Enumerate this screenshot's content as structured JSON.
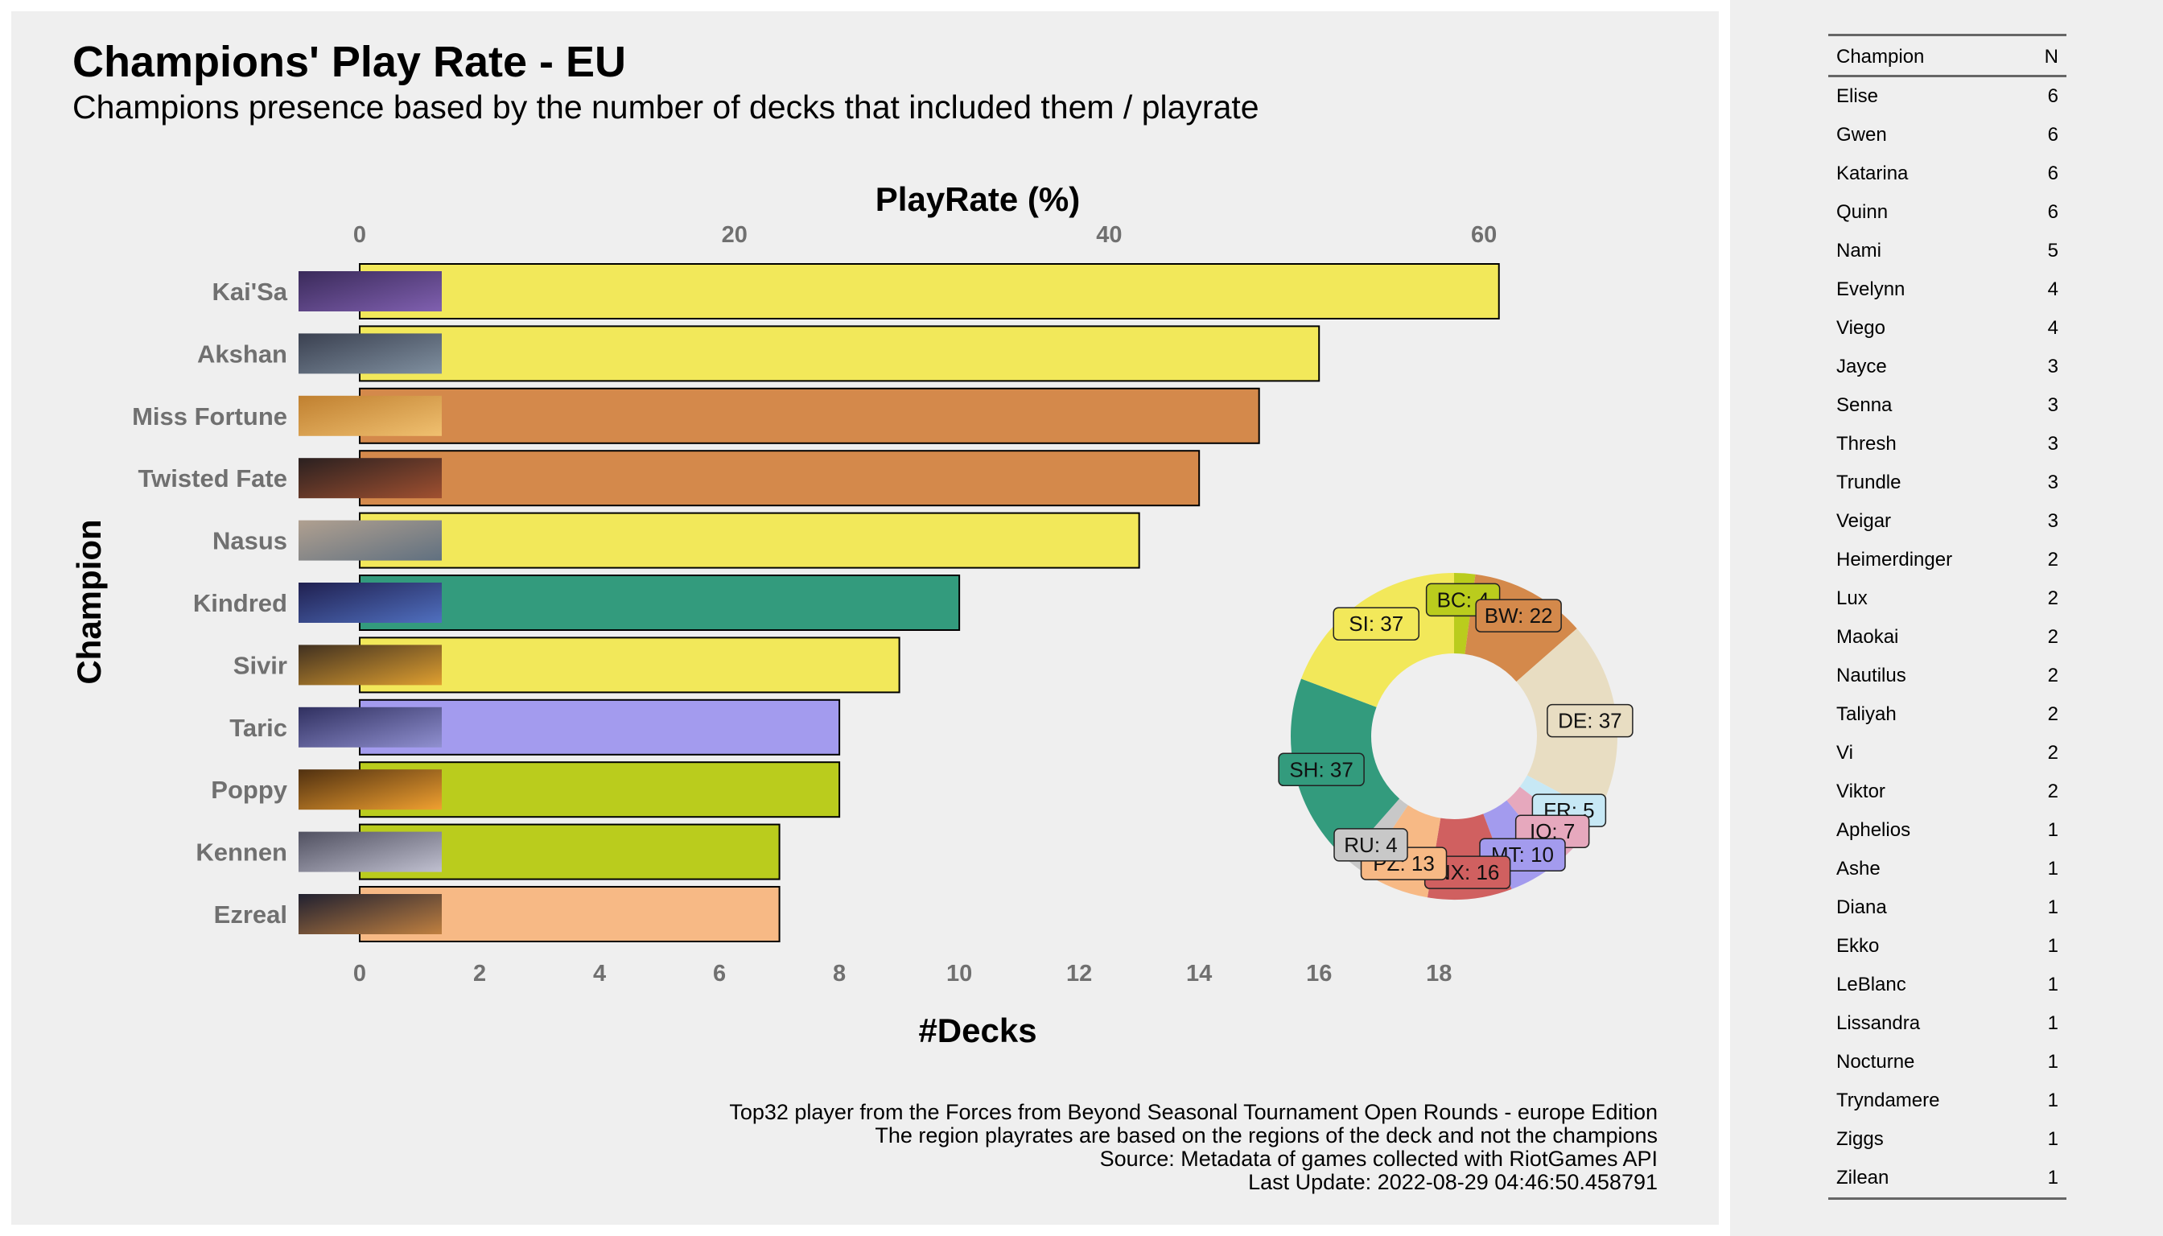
{
  "chart_data": [
    {
      "type": "bar",
      "orientation": "horizontal",
      "title": "Champions' Play Rate - EU",
      "subtitle": "Champions presence based by the number of decks that included them / playrate",
      "xlabel": "#Decks",
      "ylabel": "Champion",
      "x2label": "PlayRate (%)",
      "xlim": [
        0,
        19.5
      ],
      "x2lim": [
        0,
        62.4
      ],
      "xticks": [
        "0",
        "2",
        "4",
        "6",
        "8",
        "10",
        "12",
        "14",
        "16",
        "18"
      ],
      "x2ticks": [
        "0",
        "20",
        "40",
        "60"
      ],
      "categories": [
        "Kai'Sa",
        "Akshan",
        "Miss Fortune",
        "Twisted Fate",
        "Nasus",
        "Kindred",
        "Sivir",
        "Taric",
        "Poppy",
        "Kennen",
        "Ezreal"
      ],
      "values": [
        19,
        16,
        15,
        14,
        13,
        10,
        9,
        8,
        8,
        7,
        7
      ],
      "bar_colors": [
        "#f2e85a",
        "#f2e85a",
        "#d4894b",
        "#d4894b",
        "#f2e85a",
        "#339b7d",
        "#f2e85a",
        "#a39bee",
        "#bacc1d",
        "#bacc1d",
        "#f7b985"
      ],
      "thumbnail_colors": [
        [
          "#3a2a5a",
          "#8060b0"
        ],
        [
          "#3a4050",
          "#8090a0"
        ],
        [
          "#c08030",
          "#f0c070"
        ],
        [
          "#2a2020",
          "#a05030"
        ],
        [
          "#b0a090",
          "#607080"
        ],
        [
          "#202050",
          "#5070c0"
        ],
        [
          "#403020",
          "#e0a030"
        ],
        [
          "#303060",
          "#9090d0"
        ],
        [
          "#503010",
          "#f0a030"
        ],
        [
          "#505060",
          "#c0c0d0"
        ],
        [
          "#202030",
          "#c08040"
        ]
      ],
      "grid": false,
      "legend": "none"
    },
    {
      "type": "pie",
      "donut": true,
      "slices": [
        {
          "label": "BC: 4",
          "value": 4,
          "color": "#bacc1d"
        },
        {
          "label": "BW: 22",
          "value": 22,
          "color": "#d4894b"
        },
        {
          "label": "DE: 37",
          "value": 37,
          "color": "#e8ddc2"
        },
        {
          "label": "FR: 5",
          "value": 5,
          "color": "#c7e8f5"
        },
        {
          "label": "IO: 7",
          "value": 7,
          "color": "#e6a8bd"
        },
        {
          "label": "MT: 10",
          "value": 10,
          "color": "#a39bee"
        },
        {
          "label": "NX: 16",
          "value": 16,
          "color": "#d06060"
        },
        {
          "label": "PZ: 13",
          "value": 13,
          "color": "#f7b985"
        },
        {
          "label": "RU: 4",
          "value": 4,
          "color": "#c8c8c8"
        },
        {
          "label": "SH: 37",
          "value": 37,
          "color": "#339b7d"
        },
        {
          "label": "SI: 37",
          "value": 37,
          "color": "#f2e85a"
        }
      ]
    }
  ],
  "caption": [
    "Top32 player from the Forces from Beyond Seasonal Tournament Open Rounds - europe Edition",
    "The region playrates are based on the regions of the deck and not the champions",
    "Source: Metadata of games collected with RiotGames API",
    "Last Update: 2022-08-29 04:46:50.458791"
  ],
  "table": {
    "headers": [
      "Champion",
      "N"
    ],
    "rows": [
      [
        "Elise",
        "6"
      ],
      [
        "Gwen",
        "6"
      ],
      [
        "Katarina",
        "6"
      ],
      [
        "Quinn",
        "6"
      ],
      [
        "Nami",
        "5"
      ],
      [
        "Evelynn",
        "4"
      ],
      [
        "Viego",
        "4"
      ],
      [
        "Jayce",
        "3"
      ],
      [
        "Senna",
        "3"
      ],
      [
        "Thresh",
        "3"
      ],
      [
        "Trundle",
        "3"
      ],
      [
        "Veigar",
        "3"
      ],
      [
        "Heimerdinger",
        "2"
      ],
      [
        "Lux",
        "2"
      ],
      [
        "Maokai",
        "2"
      ],
      [
        "Nautilus",
        "2"
      ],
      [
        "Taliyah",
        "2"
      ],
      [
        "Vi",
        "2"
      ],
      [
        "Viktor",
        "2"
      ],
      [
        "Aphelios",
        "1"
      ],
      [
        "Ashe",
        "1"
      ],
      [
        "Diana",
        "1"
      ],
      [
        "Ekko",
        "1"
      ],
      [
        "LeBlanc",
        "1"
      ],
      [
        "Lissandra",
        "1"
      ],
      [
        "Nocturne",
        "1"
      ],
      [
        "Tryndamere",
        "1"
      ],
      [
        "Ziggs",
        "1"
      ],
      [
        "Zilean",
        "1"
      ]
    ]
  }
}
